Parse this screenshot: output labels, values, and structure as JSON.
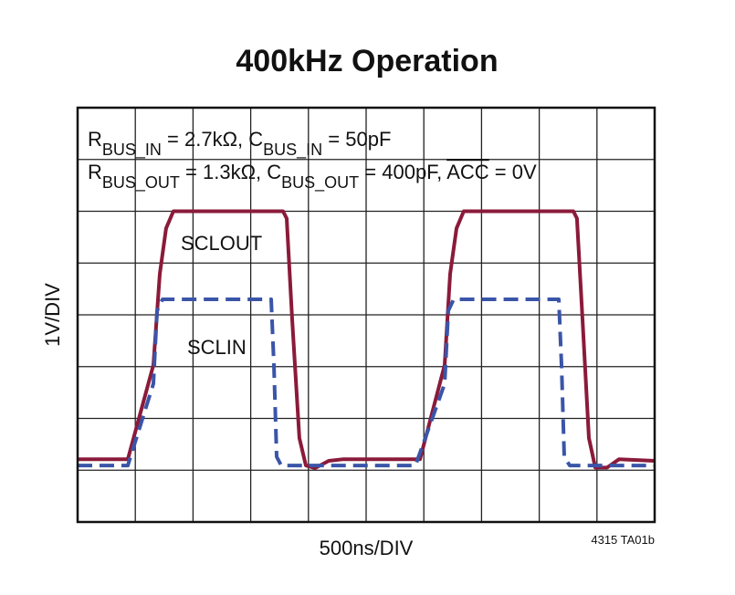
{
  "chart_data": {
    "type": "line",
    "title": "400kHz Operation",
    "conditions": [
      [
        {
          "text": "R"
        },
        {
          "text": "BUS_IN",
          "style": "sub"
        },
        {
          "text": " = 2.7kΩ, C"
        },
        {
          "text": "BUS_IN",
          "style": "sub"
        },
        {
          "text": " = 50pF"
        }
      ],
      [
        {
          "text": "R"
        },
        {
          "text": "BUS_OUT",
          "style": "sub"
        },
        {
          "text": " = 1.3kΩ, C"
        },
        {
          "text": "BUS_OUT",
          "style": "sub"
        },
        {
          "text": " = 400pF, "
        },
        {
          "text": "ACC",
          "style": "overline"
        },
        {
          "text": " = 0V"
        }
      ]
    ],
    "xlabel": "500ns/DIV",
    "ylabel": "1V/DIV",
    "note": "4315 TA01b",
    "xlim": [
      0,
      5000
    ],
    "xticks": [
      0,
      500,
      1000,
      1500,
      2000,
      2500,
      3000,
      3500,
      4000,
      4500,
      5000
    ],
    "ylim": [
      -1,
      7
    ],
    "yticks": [
      -1,
      0,
      1,
      2,
      3,
      4,
      5,
      6,
      7
    ],
    "grid": true,
    "series": [
      {
        "name": "SCLOUT",
        "color": "#8b1a3a",
        "dash": false,
        "x": [
          0,
          435,
          657,
          712,
          767,
          830,
          1780,
          1812,
          1859,
          1922,
          1978,
          2057,
          2176,
          2294,
          2967,
          3180,
          3228,
          3283,
          3346,
          4296,
          4327,
          4375,
          4430,
          4486,
          4588,
          4691,
          5000
        ],
        "values": [
          0.21,
          0.21,
          2.03,
          3.79,
          4.67,
          5.0,
          5.0,
          4.86,
          2.91,
          0.62,
          0.09,
          0.04,
          0.18,
          0.21,
          0.21,
          2.03,
          3.79,
          4.67,
          5.0,
          5.0,
          4.86,
          2.91,
          0.62,
          0.05,
          0.05,
          0.21,
          0.18
        ]
      },
      {
        "name": "SCLIN",
        "color": "#3a55a8",
        "dash": true,
        "x": [
          0,
          435,
          657,
          688,
          736,
          1677,
          1701,
          1725,
          1764,
          2927,
          3180,
          3212,
          3259,
          4169,
          4193,
          4217,
          4264,
          5000
        ],
        "values": [
          0.09,
          0.09,
          1.67,
          3.08,
          3.3,
          3.3,
          2.03,
          0.26,
          0.09,
          0.09,
          1.67,
          3.08,
          3.3,
          3.3,
          2.03,
          0.26,
          0.09,
          0.09
        ]
      }
    ]
  }
}
